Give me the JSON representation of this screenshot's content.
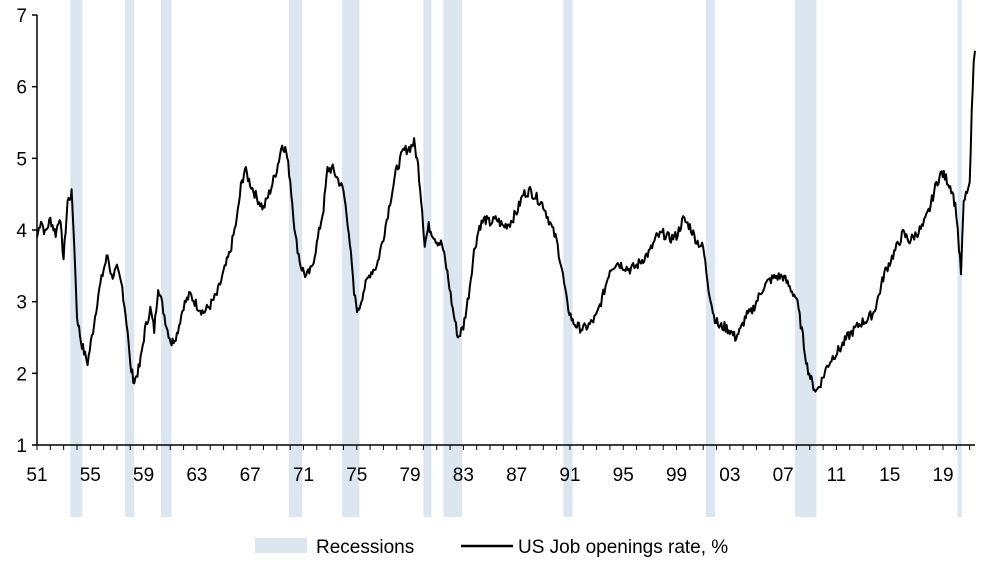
{
  "chart_data": {
    "type": "line",
    "title": "",
    "xlabel": "",
    "ylabel": "",
    "ylim": [
      1,
      7
    ],
    "xlim": [
      1951,
      2021.4
    ],
    "yticks": [
      1,
      2,
      3,
      4,
      5,
      6,
      7
    ],
    "xticks": [
      {
        "year": 1951,
        "label": "51"
      },
      {
        "year": 1955,
        "label": "55"
      },
      {
        "year": 1959,
        "label": "59"
      },
      {
        "year": 1963,
        "label": "63"
      },
      {
        "year": 1967,
        "label": "67"
      },
      {
        "year": 1971,
        "label": "71"
      },
      {
        "year": 1975,
        "label": "75"
      },
      {
        "year": 1979,
        "label": "79"
      },
      {
        "year": 1983,
        "label": "83"
      },
      {
        "year": 1987,
        "label": "87"
      },
      {
        "year": 1991,
        "label": "91"
      },
      {
        "year": 1995,
        "label": "95"
      },
      {
        "year": 1999,
        "label": "99"
      },
      {
        "year": 2003,
        "label": "03"
      },
      {
        "year": 2007,
        "label": "07"
      },
      {
        "year": 2011,
        "label": "11"
      },
      {
        "year": 2015,
        "label": "15"
      },
      {
        "year": 2019,
        "label": "19"
      }
    ],
    "recessions": [
      [
        1953.5,
        1954.4
      ],
      [
        1957.6,
        1958.3
      ],
      [
        1960.3,
        1961.1
      ],
      [
        1969.9,
        1970.9
      ],
      [
        1973.9,
        1975.2
      ],
      [
        1980.0,
        1980.6
      ],
      [
        1981.5,
        1982.9
      ],
      [
        1990.5,
        1991.2
      ],
      [
        2001.2,
        2001.9
      ],
      [
        2007.9,
        2009.5
      ],
      [
        2020.1,
        2020.4
      ]
    ],
    "series": [
      {
        "name": "US Job openings rate, %",
        "color": "#000000",
        "points": [
          [
            1951.0,
            3.9
          ],
          [
            1951.3,
            4.15
          ],
          [
            1951.6,
            3.95
          ],
          [
            1952.0,
            4.15
          ],
          [
            1952.4,
            3.95
          ],
          [
            1952.7,
            4.2
          ],
          [
            1953.0,
            3.6
          ],
          [
            1953.3,
            4.4
          ],
          [
            1953.6,
            4.5
          ],
          [
            1953.8,
            3.8
          ],
          [
            1954.0,
            2.8
          ],
          [
            1954.3,
            2.45
          ],
          [
            1954.6,
            2.25
          ],
          [
            1954.8,
            2.15
          ],
          [
            1955.2,
            2.6
          ],
          [
            1955.6,
            3.1
          ],
          [
            1956.0,
            3.45
          ],
          [
            1956.3,
            3.65
          ],
          [
            1956.6,
            3.35
          ],
          [
            1957.0,
            3.45
          ],
          [
            1957.4,
            3.2
          ],
          [
            1957.8,
            2.6
          ],
          [
            1958.0,
            2.1
          ],
          [
            1958.3,
            1.88
          ],
          [
            1958.7,
            2.1
          ],
          [
            1959.1,
            2.6
          ],
          [
            1959.5,
            2.9
          ],
          [
            1959.8,
            2.6
          ],
          [
            1960.1,
            3.22
          ],
          [
            1960.4,
            2.95
          ],
          [
            1960.8,
            2.6
          ],
          [
            1961.1,
            2.42
          ],
          [
            1961.5,
            2.55
          ],
          [
            1962.0,
            2.95
          ],
          [
            1962.5,
            3.1
          ],
          [
            1963.0,
            2.95
          ],
          [
            1963.5,
            2.85
          ],
          [
            1964.0,
            2.95
          ],
          [
            1964.5,
            3.1
          ],
          [
            1965.0,
            3.4
          ],
          [
            1965.5,
            3.7
          ],
          [
            1966.0,
            4.15
          ],
          [
            1966.3,
            4.6
          ],
          [
            1966.6,
            4.85
          ],
          [
            1967.0,
            4.65
          ],
          [
            1967.5,
            4.45
          ],
          [
            1968.0,
            4.3
          ],
          [
            1968.5,
            4.55
          ],
          [
            1969.0,
            4.85
          ],
          [
            1969.4,
            5.2
          ],
          [
            1969.7,
            5.1
          ],
          [
            1970.0,
            4.7
          ],
          [
            1970.4,
            3.9
          ],
          [
            1970.8,
            3.5
          ],
          [
            1971.2,
            3.35
          ],
          [
            1971.6,
            3.45
          ],
          [
            1972.0,
            3.8
          ],
          [
            1972.5,
            4.3
          ],
          [
            1972.8,
            4.85
          ],
          [
            1973.2,
            4.85
          ],
          [
            1973.6,
            4.7
          ],
          [
            1974.0,
            4.55
          ],
          [
            1974.4,
            4.0
          ],
          [
            1974.8,
            3.1
          ],
          [
            1975.1,
            2.85
          ],
          [
            1975.5,
            3.15
          ],
          [
            1976.0,
            3.4
          ],
          [
            1976.5,
            3.5
          ],
          [
            1977.0,
            3.9
          ],
          [
            1977.5,
            4.4
          ],
          [
            1978.0,
            4.85
          ],
          [
            1978.5,
            5.1
          ],
          [
            1979.0,
            5.15
          ],
          [
            1979.3,
            5.22
          ],
          [
            1979.6,
            4.9
          ],
          [
            1979.9,
            4.3
          ],
          [
            1980.1,
            3.8
          ],
          [
            1980.4,
            4.05
          ],
          [
            1980.7,
            3.95
          ],
          [
            1981.0,
            3.85
          ],
          [
            1981.4,
            3.8
          ],
          [
            1981.8,
            3.4
          ],
          [
            1982.2,
            2.9
          ],
          [
            1982.6,
            2.5
          ],
          [
            1983.0,
            2.65
          ],
          [
            1983.4,
            3.1
          ],
          [
            1983.8,
            3.7
          ],
          [
            1984.2,
            4.05
          ],
          [
            1984.6,
            4.15
          ],
          [
            1985.0,
            4.1
          ],
          [
            1985.5,
            4.15
          ],
          [
            1986.0,
            4.05
          ],
          [
            1986.5,
            4.1
          ],
          [
            1987.0,
            4.25
          ],
          [
            1987.5,
            4.5
          ],
          [
            1988.0,
            4.55
          ],
          [
            1988.5,
            4.45
          ],
          [
            1989.0,
            4.35
          ],
          [
            1989.5,
            4.1
          ],
          [
            1990.0,
            3.85
          ],
          [
            1990.4,
            3.45
          ],
          [
            1990.8,
            2.95
          ],
          [
            1991.2,
            2.72
          ],
          [
            1991.6,
            2.65
          ],
          [
            1992.0,
            2.62
          ],
          [
            1992.5,
            2.68
          ],
          [
            1993.0,
            2.8
          ],
          [
            1993.5,
            3.1
          ],
          [
            1994.0,
            3.45
          ],
          [
            1994.5,
            3.55
          ],
          [
            1995.0,
            3.5
          ],
          [
            1995.5,
            3.45
          ],
          [
            1996.0,
            3.5
          ],
          [
            1996.5,
            3.6
          ],
          [
            1997.0,
            3.7
          ],
          [
            1997.5,
            3.9
          ],
          [
            1998.0,
            3.95
          ],
          [
            1998.5,
            3.88
          ],
          [
            1999.0,
            3.92
          ],
          [
            1999.5,
            4.15
          ],
          [
            2000.0,
            4.05
          ],
          [
            2000.5,
            3.85
          ],
          [
            2001.0,
            3.75
          ],
          [
            2001.4,
            3.2
          ],
          [
            2001.8,
            2.8
          ],
          [
            2002.2,
            2.65
          ],
          [
            2002.6,
            2.65
          ],
          [
            2003.0,
            2.6
          ],
          [
            2003.4,
            2.5
          ],
          [
            2003.8,
            2.6
          ],
          [
            2004.2,
            2.8
          ],
          [
            2004.6,
            2.85
          ],
          [
            2005.0,
            3.0
          ],
          [
            2005.5,
            3.2
          ],
          [
            2006.0,
            3.3
          ],
          [
            2006.5,
            3.35
          ],
          [
            2007.0,
            3.35
          ],
          [
            2007.5,
            3.2
          ],
          [
            2008.0,
            3.05
          ],
          [
            2008.4,
            2.6
          ],
          [
            2008.8,
            2.1
          ],
          [
            2009.2,
            1.85
          ],
          [
            2009.5,
            1.75
          ],
          [
            2009.9,
            1.9
          ],
          [
            2010.3,
            2.1
          ],
          [
            2010.8,
            2.25
          ],
          [
            2011.3,
            2.35
          ],
          [
            2011.8,
            2.5
          ],
          [
            2012.3,
            2.6
          ],
          [
            2012.8,
            2.7
          ],
          [
            2013.3,
            2.75
          ],
          [
            2013.8,
            2.85
          ],
          [
            2014.2,
            3.1
          ],
          [
            2014.6,
            3.4
          ],
          [
            2015.0,
            3.55
          ],
          [
            2015.5,
            3.75
          ],
          [
            2016.0,
            3.95
          ],
          [
            2016.5,
            3.85
          ],
          [
            2017.0,
            3.95
          ],
          [
            2017.5,
            4.05
          ],
          [
            2018.0,
            4.3
          ],
          [
            2018.5,
            4.65
          ],
          [
            2018.9,
            4.8
          ],
          [
            2019.3,
            4.7
          ],
          [
            2019.7,
            4.55
          ],
          [
            2020.0,
            4.25
          ],
          [
            2020.2,
            3.75
          ],
          [
            2020.35,
            3.4
          ],
          [
            2020.55,
            4.35
          ],
          [
            2020.8,
            4.55
          ],
          [
            2021.0,
            4.6
          ],
          [
            2021.15,
            5.6
          ],
          [
            2021.3,
            6.3
          ],
          [
            2021.4,
            6.5
          ]
        ]
      }
    ],
    "legend": {
      "position": "bottom",
      "items": [
        {
          "label": "Recessions",
          "kind": "area",
          "color": "#dbe6f0"
        },
        {
          "label": "US Job openings rate, %",
          "kind": "line",
          "color": "#000000"
        }
      ]
    },
    "colors": {
      "recession_fill": "#dbe6f0",
      "axis": "#000000"
    }
  }
}
